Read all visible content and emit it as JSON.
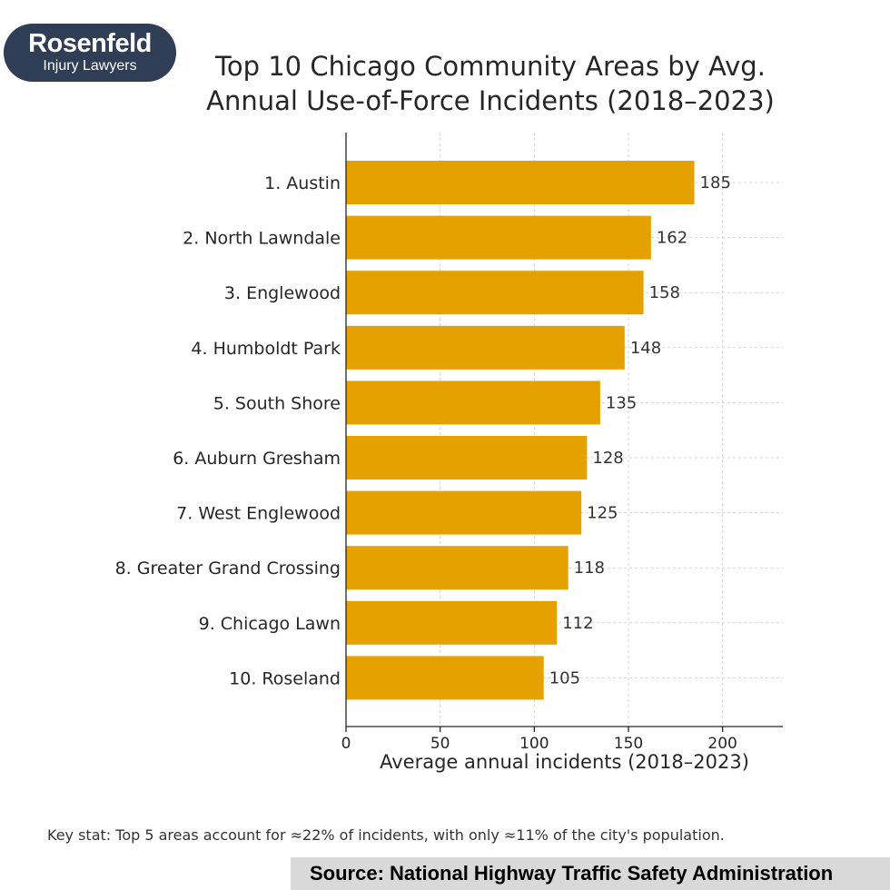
{
  "logo": {
    "name": "Rosenfeld",
    "tagline": "Injury Lawyers"
  },
  "chart_data": {
    "type": "bar",
    "orientation": "horizontal",
    "title_lines": [
      "Top 10 Chicago Community Areas by Avg.",
      "Annual Use-of-Force Incidents (2018–2023)"
    ],
    "categories": [
      "1. Austin",
      "2. North Lawndale",
      "3. Englewood",
      "4. Humboldt Park",
      "5. South Shore",
      "6. Auburn Gresham",
      "7. West Englewood",
      "8. Greater Grand Crossing",
      "9. Chicago Lawn",
      "10. Roseland"
    ],
    "values": [
      185,
      162,
      158,
      148,
      135,
      128,
      125,
      118,
      112,
      105
    ],
    "xlabel": "Average annual incidents (2018–2023)",
    "ylabel": "",
    "xlim": [
      0,
      232
    ],
    "xticks": [
      0,
      50,
      100,
      150,
      200
    ],
    "grid": true,
    "data_labels": true,
    "bar_color": "#e5a100"
  },
  "footer": {
    "key_stat": "Key stat: Top 5 areas account for ≈22% of incidents, with only ≈11% of the city's population.",
    "source": "Source: National Highway Traffic Safety Administration"
  }
}
